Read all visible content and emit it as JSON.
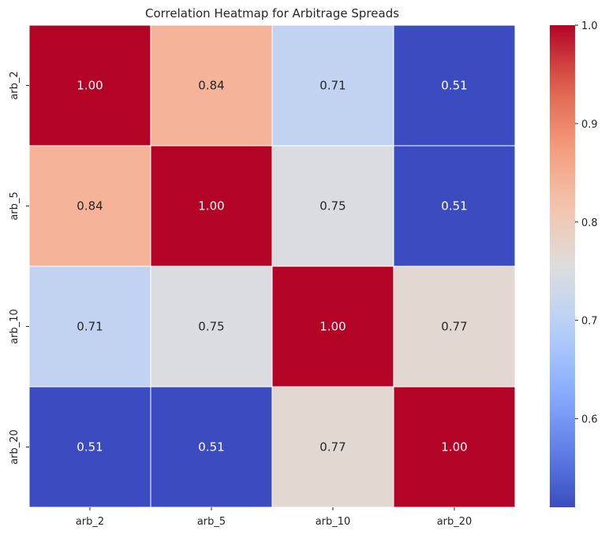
{
  "chart_data": {
    "type": "heatmap",
    "title": "Correlation Heatmap for Arbitrage Spreads",
    "xlabel": "",
    "ylabel": "",
    "x_categories": [
      "arb_2",
      "arb_5",
      "arb_10",
      "arb_20"
    ],
    "y_categories": [
      "arb_2",
      "arb_5",
      "arb_10",
      "arb_20"
    ],
    "values": [
      [
        1.0,
        0.84,
        0.71,
        0.51
      ],
      [
        0.84,
        1.0,
        0.75,
        0.51
      ],
      [
        0.71,
        0.75,
        1.0,
        0.77
      ],
      [
        0.51,
        0.51,
        0.77,
        1.0
      ]
    ],
    "value_labels": [
      [
        "1.00",
        "0.84",
        "0.71",
        "0.51"
      ],
      [
        "0.84",
        "1.00",
        "0.75",
        "0.51"
      ],
      [
        "0.71",
        "0.75",
        "1.00",
        "0.77"
      ],
      [
        "0.51",
        "0.51",
        "0.77",
        "1.00"
      ]
    ],
    "colormap": "coolwarm",
    "vmin": 0.51,
    "vmax": 1.0,
    "colorbar_ticks": [
      "0.6",
      "0.7",
      "0.8",
      "0.9",
      "1.0"
    ],
    "colorbar_tick_values": [
      0.6,
      0.7,
      0.8,
      0.9,
      1.0
    ],
    "grid_line_color": "#ffffff",
    "annotation_color_light": "#ffffff",
    "annotation_color_dark": "#262626"
  }
}
